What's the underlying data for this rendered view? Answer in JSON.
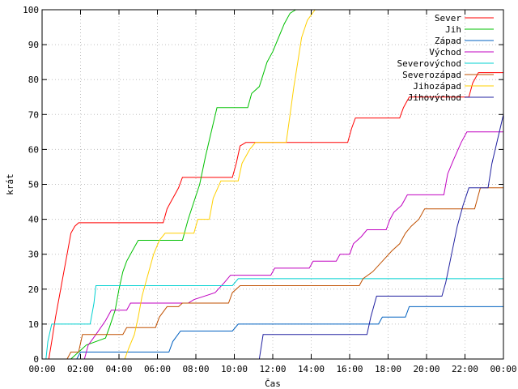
{
  "chart_data": {
    "type": "line",
    "title": "",
    "xlabel": "Čas",
    "ylabel": "krát",
    "xlim": [
      0,
      24
    ],
    "ylim": [
      0,
      100
    ],
    "x_ticks": [
      {
        "value": 0,
        "label": "00:00"
      },
      {
        "value": 2,
        "label": "02:00"
      },
      {
        "value": 4,
        "label": "04:00"
      },
      {
        "value": 6,
        "label": "06:00"
      },
      {
        "value": 8,
        "label": "08:00"
      },
      {
        "value": 10,
        "label": "10:00"
      },
      {
        "value": 12,
        "label": "12:00"
      },
      {
        "value": 14,
        "label": "14:00"
      },
      {
        "value": 16,
        "label": "16:00"
      },
      {
        "value": 18,
        "label": "18:00"
      },
      {
        "value": 20,
        "label": "20:00"
      },
      {
        "value": 22,
        "label": "22:00"
      },
      {
        "value": 24,
        "label": "00:00"
      }
    ],
    "y_ticks": [
      0,
      10,
      20,
      30,
      40,
      50,
      60,
      70,
      80,
      90,
      100
    ],
    "grid": true,
    "legend_position": "top-right",
    "series": [
      {
        "name": "Sever",
        "color": "#ff0000",
        "points": [
          [
            0.35,
            0
          ],
          [
            0.5,
            5
          ],
          [
            0.7,
            12
          ],
          [
            0.9,
            18
          ],
          [
            1.1,
            24
          ],
          [
            1.3,
            30
          ],
          [
            1.5,
            36
          ],
          [
            1.7,
            38
          ],
          [
            1.9,
            39
          ],
          [
            6.3,
            39
          ],
          [
            6.5,
            43
          ],
          [
            6.7,
            45
          ],
          [
            6.9,
            47
          ],
          [
            7.1,
            49
          ],
          [
            7.3,
            52
          ],
          [
            9.9,
            52
          ],
          [
            10.1,
            56
          ],
          [
            10.3,
            61
          ],
          [
            10.6,
            62
          ],
          [
            15.9,
            62
          ],
          [
            16.1,
            66
          ],
          [
            16.3,
            69
          ],
          [
            18.6,
            69
          ],
          [
            18.8,
            72
          ],
          [
            19.1,
            75
          ],
          [
            22.2,
            75
          ],
          [
            22.4,
            79
          ],
          [
            22.7,
            82
          ],
          [
            24,
            82
          ]
        ]
      },
      {
        "name": "Jih",
        "color": "#00c000",
        "points": [
          [
            1.5,
            0
          ],
          [
            1.9,
            2
          ],
          [
            2.1,
            3
          ],
          [
            2.3,
            4
          ],
          [
            3.3,
            6
          ],
          [
            3.5,
            9
          ],
          [
            3.8,
            14
          ],
          [
            4.0,
            20
          ],
          [
            4.2,
            25
          ],
          [
            4.4,
            28
          ],
          [
            4.7,
            31
          ],
          [
            5.0,
            34
          ],
          [
            7.3,
            34
          ],
          [
            7.6,
            40
          ],
          [
            7.9,
            45
          ],
          [
            8.2,
            50
          ],
          [
            8.5,
            58
          ],
          [
            8.8,
            65
          ],
          [
            9.1,
            72
          ],
          [
            10.7,
            72
          ],
          [
            10.9,
            76
          ],
          [
            11.3,
            78
          ],
          [
            11.7,
            85
          ],
          [
            12.0,
            88
          ],
          [
            12.3,
            92
          ],
          [
            12.6,
            96
          ],
          [
            12.9,
            99
          ],
          [
            13.2,
            100
          ]
        ]
      },
      {
        "name": "Západ",
        "color": "#0060c0",
        "points": [
          [
            1.8,
            0
          ],
          [
            2.0,
            2
          ],
          [
            6.6,
            2
          ],
          [
            6.8,
            5
          ],
          [
            7.2,
            8
          ],
          [
            9.9,
            8
          ],
          [
            10.2,
            10
          ],
          [
            17.5,
            10
          ],
          [
            17.7,
            12
          ],
          [
            18.9,
            12
          ],
          [
            19.1,
            15
          ],
          [
            24,
            15
          ]
        ]
      },
      {
        "name": "Východ",
        "color": "#c000c0",
        "points": [
          [
            2.2,
            0
          ],
          [
            2.4,
            4
          ],
          [
            2.8,
            7
          ],
          [
            3.3,
            11
          ],
          [
            3.6,
            14
          ],
          [
            4.4,
            14
          ],
          [
            4.6,
            16
          ],
          [
            7.6,
            16
          ],
          [
            7.9,
            17
          ],
          [
            9.0,
            19
          ],
          [
            9.5,
            22
          ],
          [
            9.8,
            24
          ],
          [
            11.9,
            24
          ],
          [
            12.1,
            26
          ],
          [
            13.9,
            26
          ],
          [
            14.1,
            28
          ],
          [
            15.3,
            28
          ],
          [
            15.5,
            30
          ],
          [
            16.0,
            30
          ],
          [
            16.2,
            33
          ],
          [
            16.6,
            35
          ],
          [
            16.9,
            37
          ],
          [
            17.9,
            37
          ],
          [
            18.1,
            40
          ],
          [
            18.3,
            42
          ],
          [
            18.7,
            44
          ],
          [
            19.0,
            47
          ],
          [
            20.9,
            47
          ],
          [
            21.1,
            53
          ],
          [
            21.4,
            57
          ],
          [
            21.8,
            62
          ],
          [
            22.1,
            65
          ],
          [
            24,
            65
          ]
        ]
      },
      {
        "name": "Severovýchod",
        "color": "#00d0d0",
        "points": [
          [
            0.2,
            0
          ],
          [
            0.3,
            5
          ],
          [
            0.5,
            10
          ],
          [
            2.5,
            10
          ],
          [
            2.7,
            16
          ],
          [
            2.8,
            21
          ],
          [
            9.9,
            21
          ],
          [
            10.2,
            23
          ],
          [
            24,
            23
          ]
        ]
      },
      {
        "name": "Severozápad",
        "color": "#c05000",
        "points": [
          [
            1.3,
            0
          ],
          [
            1.5,
            2
          ],
          [
            1.9,
            2
          ],
          [
            2.1,
            7
          ],
          [
            4.2,
            7
          ],
          [
            4.4,
            9
          ],
          [
            5.9,
            9
          ],
          [
            6.1,
            12
          ],
          [
            6.5,
            15
          ],
          [
            7.1,
            15
          ],
          [
            7.3,
            16
          ],
          [
            9.7,
            16
          ],
          [
            9.9,
            19
          ],
          [
            10.3,
            21
          ],
          [
            16.5,
            21
          ],
          [
            16.7,
            23
          ],
          [
            17.2,
            25
          ],
          [
            17.7,
            28
          ],
          [
            18.2,
            31
          ],
          [
            18.6,
            33
          ],
          [
            18.9,
            36
          ],
          [
            19.2,
            38
          ],
          [
            19.6,
            40
          ],
          [
            19.9,
            43
          ],
          [
            22.5,
            43
          ],
          [
            22.8,
            49
          ],
          [
            24,
            49
          ]
        ]
      },
      {
        "name": "Jihozápad",
        "color": "#ffd000",
        "points": [
          [
            4.3,
            0
          ],
          [
            4.5,
            3
          ],
          [
            4.8,
            7
          ],
          [
            5.0,
            12
          ],
          [
            5.2,
            18
          ],
          [
            5.5,
            24
          ],
          [
            5.8,
            30
          ],
          [
            6.1,
            34
          ],
          [
            6.4,
            36
          ],
          [
            7.9,
            36
          ],
          [
            8.1,
            40
          ],
          [
            8.7,
            40
          ],
          [
            8.9,
            46
          ],
          [
            9.3,
            51
          ],
          [
            10.2,
            51
          ],
          [
            10.4,
            56
          ],
          [
            10.8,
            60
          ],
          [
            11.1,
            62
          ],
          [
            12.7,
            62
          ],
          [
            12.9,
            70
          ],
          [
            13.1,
            78
          ],
          [
            13.3,
            85
          ],
          [
            13.5,
            92
          ],
          [
            13.8,
            97
          ],
          [
            14.2,
            100
          ]
        ]
      },
      {
        "name": "Jihovýchod",
        "color": "#2020a0",
        "points": [
          [
            11.3,
            0
          ],
          [
            11.5,
            7
          ],
          [
            16.9,
            7
          ],
          [
            17.1,
            12
          ],
          [
            17.4,
            18
          ],
          [
            20.8,
            18
          ],
          [
            21.0,
            22
          ],
          [
            21.3,
            30
          ],
          [
            21.6,
            38
          ],
          [
            21.9,
            44
          ],
          [
            22.2,
            49
          ],
          [
            23.2,
            49
          ],
          [
            23.4,
            56
          ],
          [
            23.7,
            63
          ],
          [
            24,
            70
          ]
        ]
      }
    ]
  }
}
